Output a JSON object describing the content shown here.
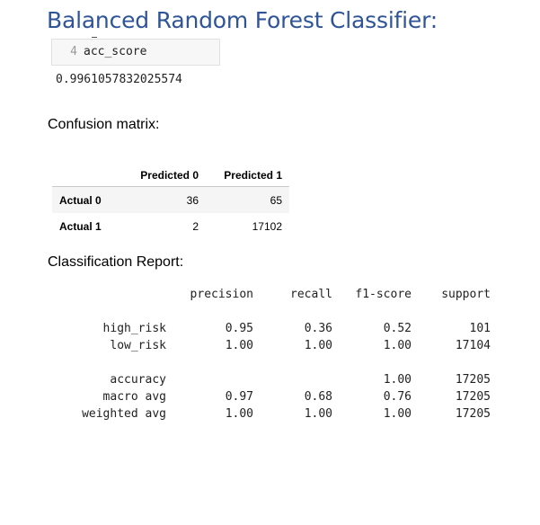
{
  "title": "Balanced Random Forest Classifier:",
  "code_cell": {
    "line_number": "4",
    "code": "acc_score"
  },
  "acc_output": "0.9961057832025574",
  "confusion_matrix": {
    "label": "Confusion matrix:",
    "columns": [
      "Predicted 0",
      "Predicted 1"
    ],
    "rows": [
      {
        "label": "Actual 0",
        "values": [
          "36",
          "65"
        ]
      },
      {
        "label": "Actual 1",
        "values": [
          "2",
          "17102"
        ]
      }
    ]
  },
  "classification_report": {
    "label": "Classification Report:",
    "headers": [
      "precision",
      "recall",
      "f1-score",
      "support"
    ],
    "class_rows": [
      {
        "name": "high_risk",
        "precision": "0.95",
        "recall": "0.36",
        "f1": "0.52",
        "support": "101"
      },
      {
        "name": "low_risk",
        "precision": "1.00",
        "recall": "1.00",
        "f1": "1.00",
        "support": "17104"
      }
    ],
    "summary_rows": [
      {
        "name": "accuracy",
        "precision": "",
        "recall": "",
        "f1": "1.00",
        "support": "17205"
      },
      {
        "name": "macro avg",
        "precision": "0.97",
        "recall": "0.68",
        "f1": "0.76",
        "support": "17205"
      },
      {
        "name": "weighted avg",
        "precision": "1.00",
        "recall": "1.00",
        "f1": "1.00",
        "support": "17205"
      }
    ]
  },
  "colors": {
    "title": "#2f5597",
    "row_stripe": "#f5f5f5",
    "code_bg": "#f7f7f7"
  }
}
